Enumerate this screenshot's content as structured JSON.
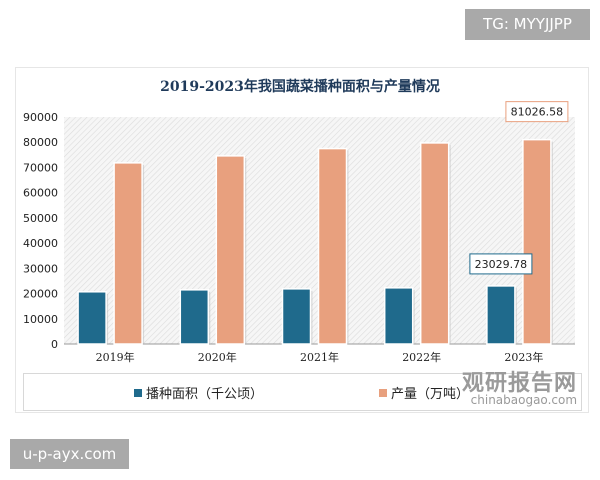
{
  "watermarks": {
    "top_right": "TG: MYYJJPP",
    "bottom_left": "u-p-ayx.com",
    "logo_cn": "观研报告网",
    "logo_en": "chinabaogao.com"
  },
  "chart_data": {
    "type": "bar",
    "title": "2019-2023年我国蔬菜播种面积与产量情况",
    "categories": [
      "2019年",
      "2020年",
      "2021年",
      "2022年",
      "2023年"
    ],
    "series": [
      {
        "name": "播种面积（千公顷）",
        "color": "#1f6a8c",
        "values": [
          20700,
          21480,
          21870,
          22270,
          23029.78
        ]
      },
      {
        "name": "产量（万吨）",
        "color": "#e8a07e",
        "values": [
          71820,
          74590,
          77480,
          79720,
          81026.58
        ]
      }
    ],
    "data_labels": [
      {
        "series": 0,
        "index": 4,
        "text": "23029.78"
      },
      {
        "series": 1,
        "index": 4,
        "text": "81026.58"
      }
    ],
    "yticks": [
      "0",
      "10000",
      "20000",
      "30000",
      "40000",
      "50000",
      "60000",
      "70000",
      "80000",
      "90000"
    ],
    "ylim": [
      0,
      90000
    ],
    "legend": "bottom",
    "grid": false
  }
}
